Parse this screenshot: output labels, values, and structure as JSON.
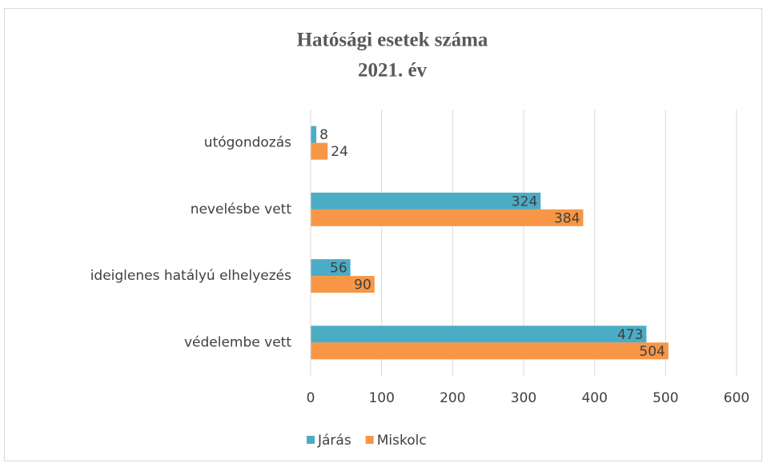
{
  "chart_data": {
    "type": "hbar",
    "title": "Hatósági esetek száma",
    "subtitle": "2021. év",
    "categories": [
      "utógondozás",
      "nevelésbe vett",
      "ideiglenes hatályú elhelyezés",
      "védelembe vett"
    ],
    "series": [
      {
        "name": "Járás",
        "color": "#4bacc6",
        "values": [
          8,
          324,
          56,
          473
        ]
      },
      {
        "name": "Miskolc",
        "color": "#f79646",
        "values": [
          24,
          384,
          90,
          504
        ]
      }
    ],
    "xlim": [
      0,
      600
    ],
    "xticks": [
      0,
      100,
      200,
      300,
      400,
      500,
      600
    ],
    "grid": true,
    "legend": "bottom"
  }
}
